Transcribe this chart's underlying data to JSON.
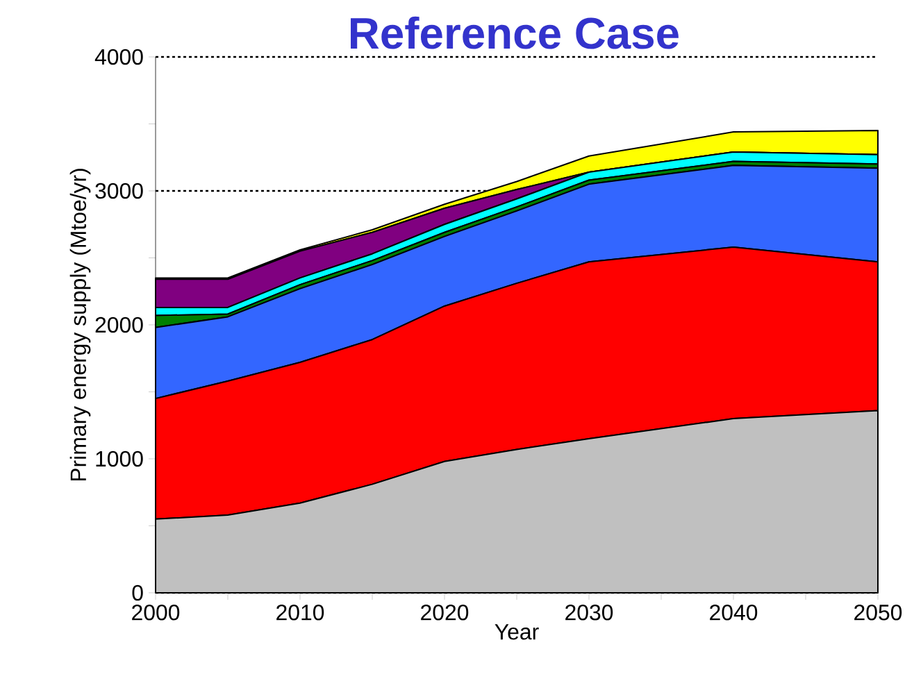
{
  "chart_data": {
    "type": "area",
    "stacked": true,
    "title": "Reference Case",
    "xlabel": "Year",
    "ylabel": "Primary energy supply (Mtoe/yr)",
    "x": [
      2000,
      2005,
      2010,
      2015,
      2020,
      2025,
      2030,
      2040,
      2050
    ],
    "series": [
      {
        "color": "#c0c0c0",
        "values": [
          550,
          580,
          670,
          810,
          980,
          1070,
          1150,
          1300,
          1360
        ]
      },
      {
        "color": "#ff0000",
        "values": [
          900,
          1000,
          1050,
          1080,
          1160,
          1240,
          1320,
          1280,
          1110
        ]
      },
      {
        "color": "#3366ff",
        "values": [
          530,
          480,
          550,
          560,
          520,
          540,
          580,
          610,
          700
        ]
      },
      {
        "color": "#008000",
        "values": [
          90,
          20,
          30,
          30,
          30,
          30,
          30,
          30,
          30
        ]
      },
      {
        "color": "#00ffff",
        "values": [
          60,
          50,
          50,
          50,
          60,
          60,
          60,
          70,
          70
        ]
      },
      {
        "color": "#800080",
        "values": [
          210,
          210,
          200,
          160,
          120,
          70,
          0,
          0,
          0
        ]
      },
      {
        "color": "#ffff00",
        "values": [
          10,
          10,
          10,
          20,
          30,
          60,
          120,
          150,
          180
        ]
      }
    ],
    "xlim": [
      2000,
      2050
    ],
    "ylim": [
      0,
      4000
    ],
    "xticks": [
      2000,
      {
        "value": 2005,
        "label": null
      },
      2010,
      {
        "value": 2015,
        "label": null
      },
      2020,
      {
        "value": 2025,
        "label": null
      },
      2030,
      {
        "value": 2035,
        "label": null
      },
      2040,
      {
        "value": 2045,
        "label": null
      },
      2050
    ],
    "yticks": [
      0,
      {
        "value": 500,
        "label": null
      },
      1000,
      {
        "value": 1500,
        "label": null
      },
      2000,
      {
        "value": 2500,
        "label": null
      },
      3000,
      {
        "value": 3500,
        "label": null
      },
      4000
    ],
    "grid": "y"
  }
}
